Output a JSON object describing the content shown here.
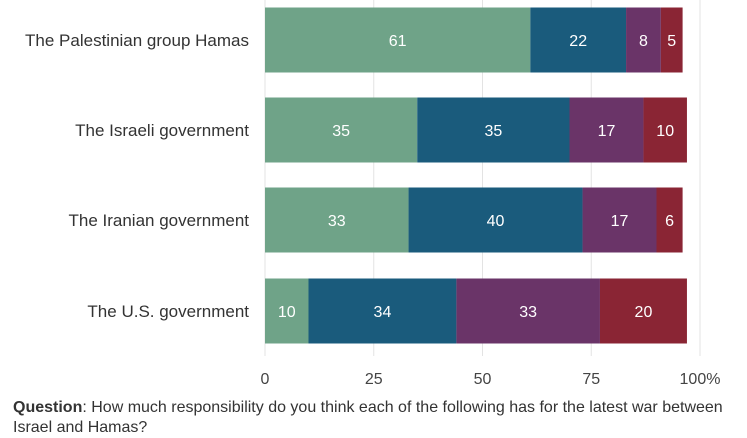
{
  "chart_data": {
    "type": "bar",
    "orientation": "horizontal",
    "stacked": true,
    "categories": [
      "The Palestinian group Hamas",
      "The Israeli government",
      "The Iranian government",
      "The U.S. government"
    ],
    "series": [
      {
        "color": "#6fa388",
        "values": [
          61,
          35,
          33,
          10
        ]
      },
      {
        "color": "#1a5b7c",
        "values": [
          22,
          35,
          40,
          34
        ]
      },
      {
        "color": "#6a3468",
        "values": [
          8,
          17,
          17,
          33
        ]
      },
      {
        "color": "#8a2534",
        "values": [
          5,
          10,
          6,
          20
        ]
      }
    ],
    "xlim": [
      0,
      100
    ],
    "x_ticks": [
      "0",
      "25",
      "50",
      "75",
      "100%"
    ],
    "grid": true,
    "legend": "none"
  },
  "footnote": {
    "label": "Question",
    "text": ": How much responsibility do you think each of the following has for the latest war between Israel and Hamas?"
  }
}
